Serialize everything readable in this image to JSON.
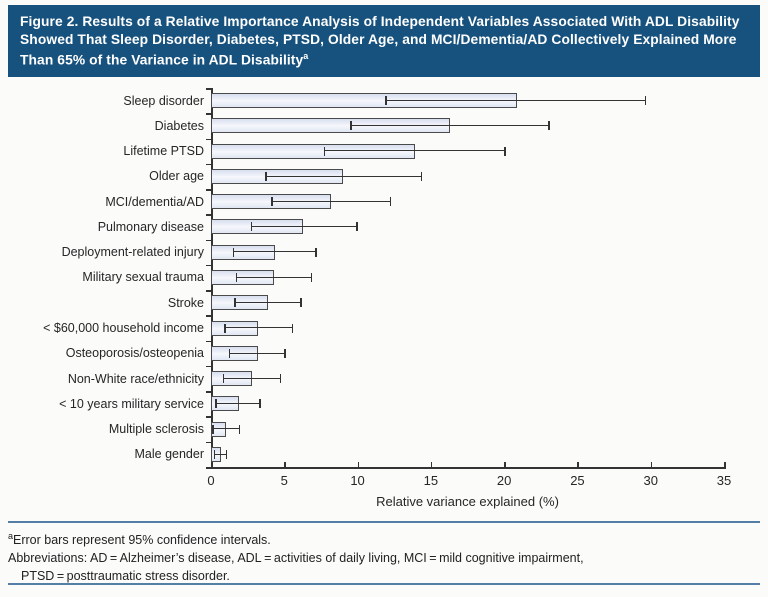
{
  "header": {
    "title": "Figure 2. Results of a Relative Importance Analysis of Independent Variables Associated With ADL Disability Showed That Sleep Disorder, Diabetes, PTSD, Older Age, and MCI/Dementia/AD Collectively Explained More Than 65% of the Variance in ADL Disability",
    "title_superscript": "a"
  },
  "chart_data": {
    "type": "bar",
    "orientation": "horizontal",
    "title": "",
    "xlabel": "Relative variance explained (%)",
    "ylabel": "",
    "xlim": [
      0,
      35
    ],
    "xticks": [
      0,
      5,
      10,
      15,
      20,
      25,
      30,
      35
    ],
    "grid": false,
    "legend": "none",
    "error_bars": "95% confidence intervals",
    "categories": [
      "Sleep disorder",
      "Diabetes",
      "Lifetime PTSD",
      "Older age",
      "MCI/dementia/AD",
      "Pulmonary disease",
      "Deployment-related injury",
      "Military sexual trauma",
      "Stroke",
      "< $60,000 household income",
      "Osteoporosis/osteopenia",
      "Non-White race/ethnicity",
      "< 10 years military service",
      "Multiple sclerosis",
      "Male gender"
    ],
    "values": [
      20.9,
      16.3,
      13.9,
      9.0,
      8.2,
      6.3,
      4.4,
      4.3,
      3.9,
      3.2,
      3.2,
      2.8,
      1.9,
      1.0,
      0.7
    ],
    "ci_low": [
      11.9,
      9.5,
      7.7,
      3.7,
      4.1,
      2.7,
      1.5,
      1.7,
      1.6,
      0.9,
      1.2,
      0.8,
      0.3,
      0.1,
      0.2
    ],
    "ci_high": [
      29.7,
      23.1,
      20.1,
      14.4,
      12.3,
      10.0,
      7.2,
      6.9,
      6.2,
      5.6,
      5.1,
      4.8,
      3.4,
      2.0,
      1.1
    ]
  },
  "footnotes": {
    "superscript": "a",
    "note1": "Error bars represent 95% confidence intervals.",
    "abbrev_line1": "Abbreviations: AD = Alzheimer’s disease, ADL = activities of daily living, MCI = mild cognitive impairment,",
    "abbrev_line2": "PTSD = posttraumatic stress disorder."
  },
  "colors": {
    "header_bg": "#17527e",
    "header_text": "#ffffff",
    "rule_blue": "#537fa6",
    "bar_fill": "#e8ecf7",
    "bar_border": "#4a4a4a",
    "axis": "#333333",
    "text": "#262626"
  }
}
